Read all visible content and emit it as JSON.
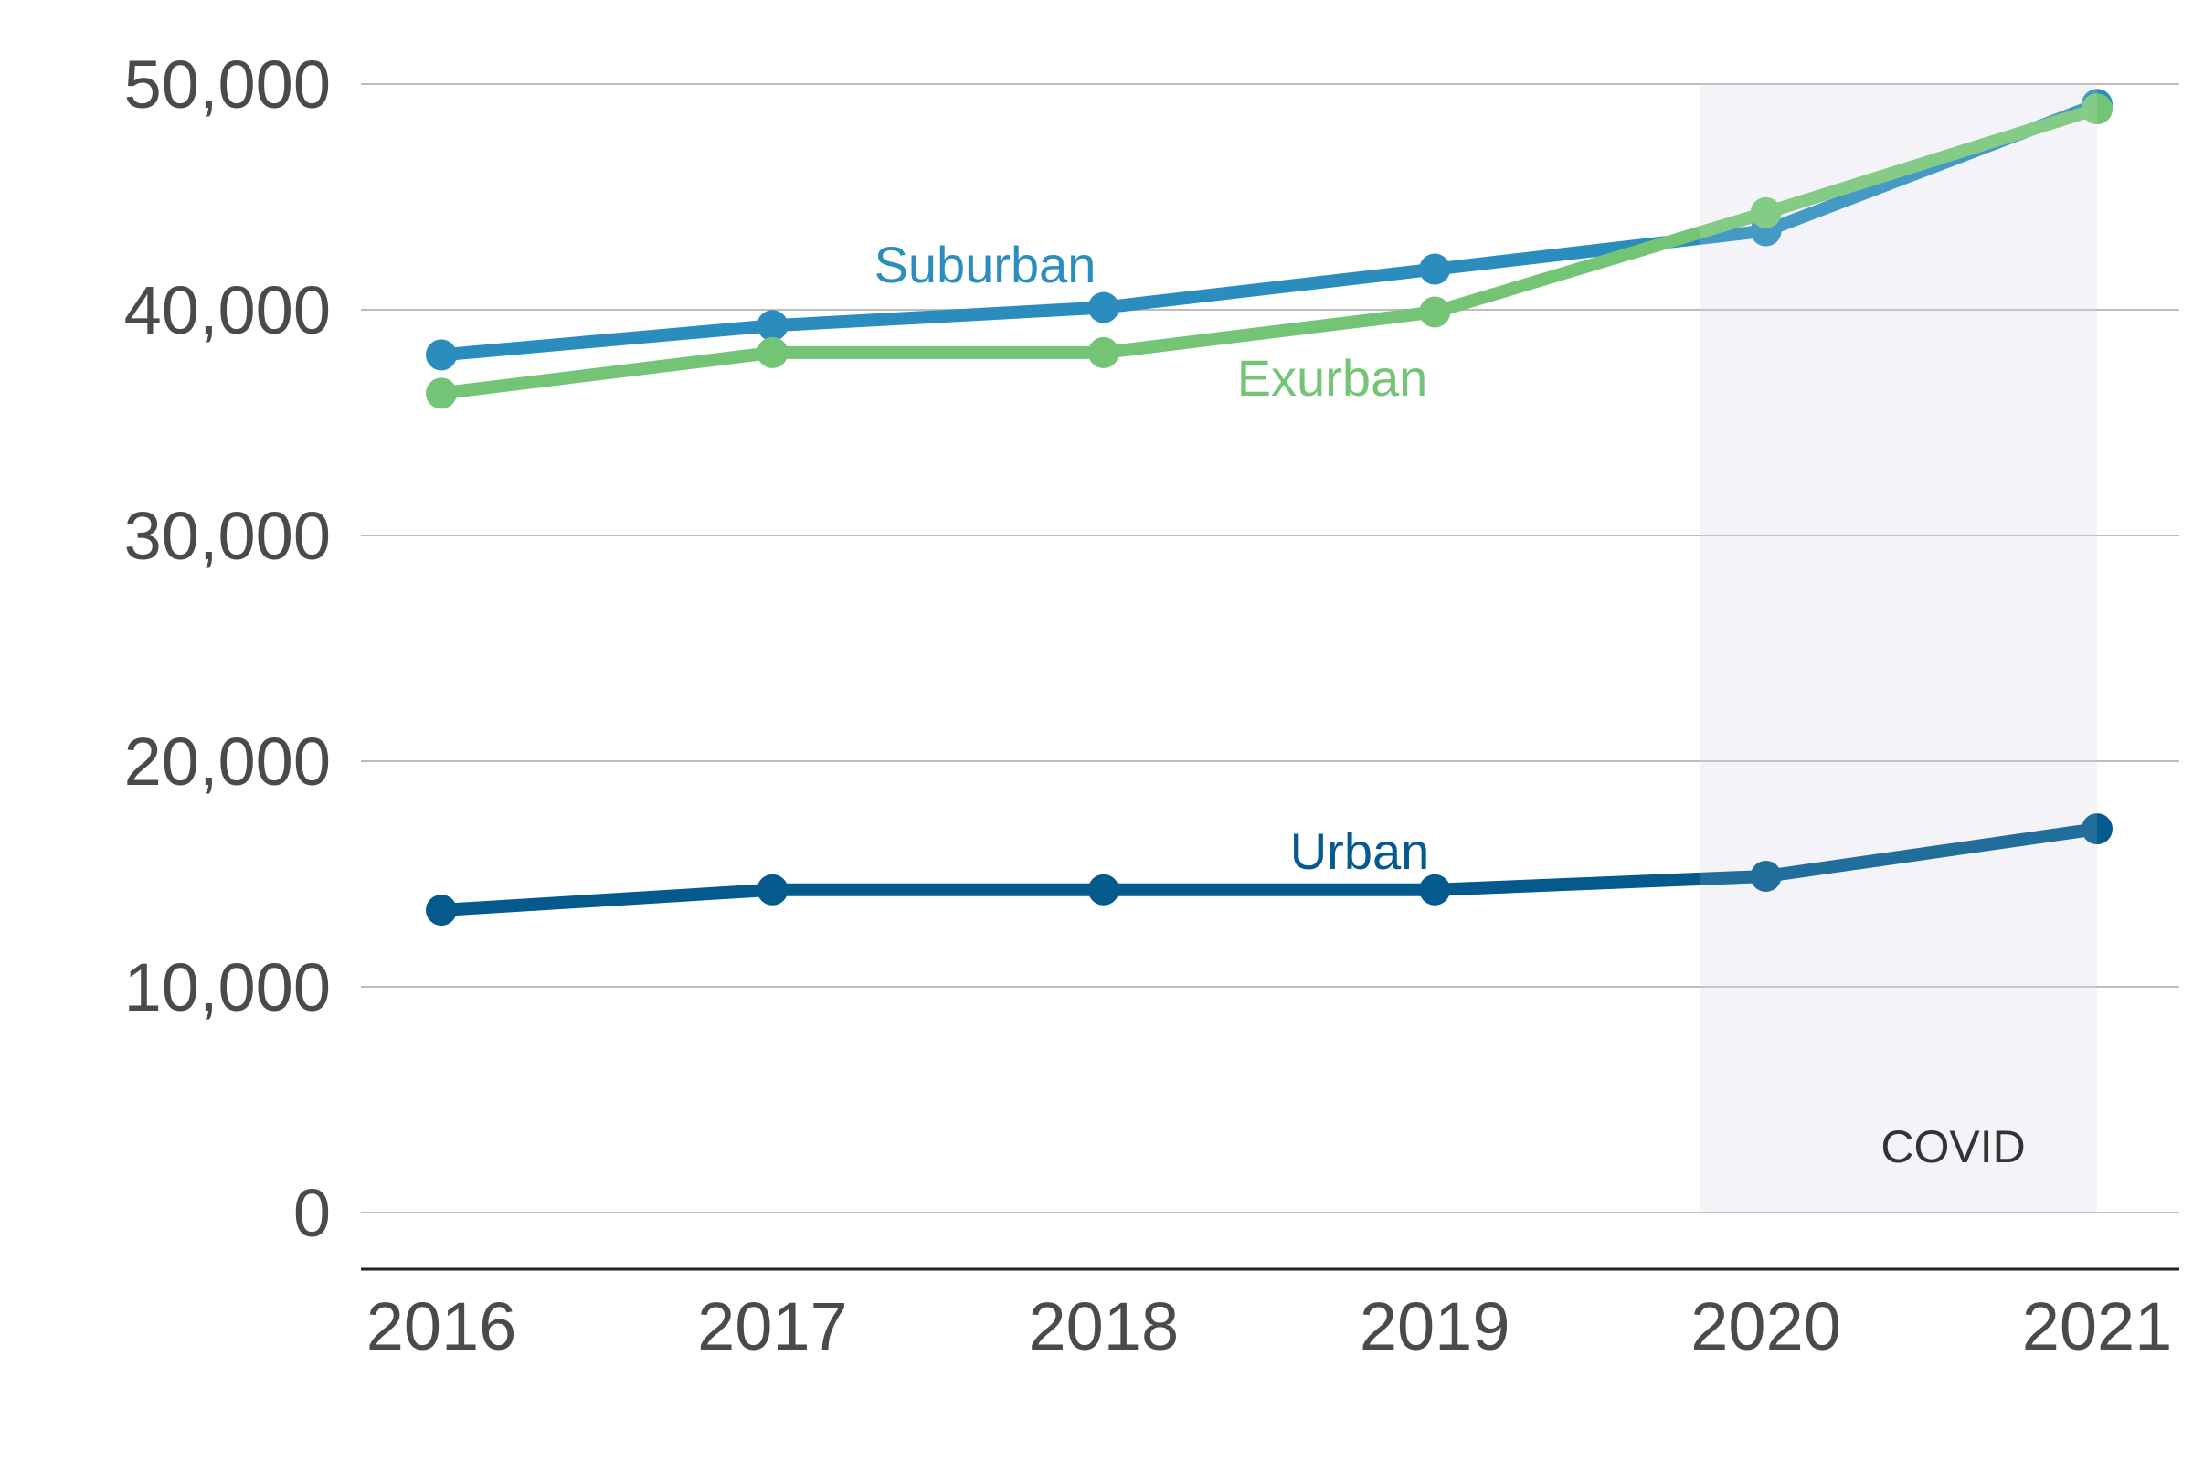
{
  "chart_data": {
    "type": "line",
    "title": "",
    "xlabel": "",
    "ylabel": "",
    "x": [
      "2016",
      "2017",
      "2018",
      "2019",
      "2020",
      "2021"
    ],
    "y_ticks": [
      "0",
      "10,000",
      "20,000",
      "30,000",
      "40,000",
      "50,000"
    ],
    "y_tick_values": [
      0,
      10000,
      20000,
      30000,
      40000,
      50000
    ],
    "ylim": [
      0,
      50000
    ],
    "grid": true,
    "legend": "inline labels",
    "series": [
      {
        "name": "Suburban",
        "color": "#2b8cbe",
        "values": [
          38000,
          39300,
          40100,
          41800,
          43500,
          49100
        ]
      },
      {
        "name": "Exurban",
        "color": "#74c476",
        "values": [
          36300,
          38100,
          38100,
          39900,
          44300,
          48900
        ]
      },
      {
        "name": "Urban",
        "color": "#045a8d",
        "values": [
          13400,
          14300,
          14300,
          14300,
          14900,
          17000
        ]
      }
    ],
    "annotations": [
      {
        "label": "COVID",
        "x_start": 2019.8,
        "x_end": 2021,
        "shade_color": "#f2f2f7"
      }
    ]
  }
}
